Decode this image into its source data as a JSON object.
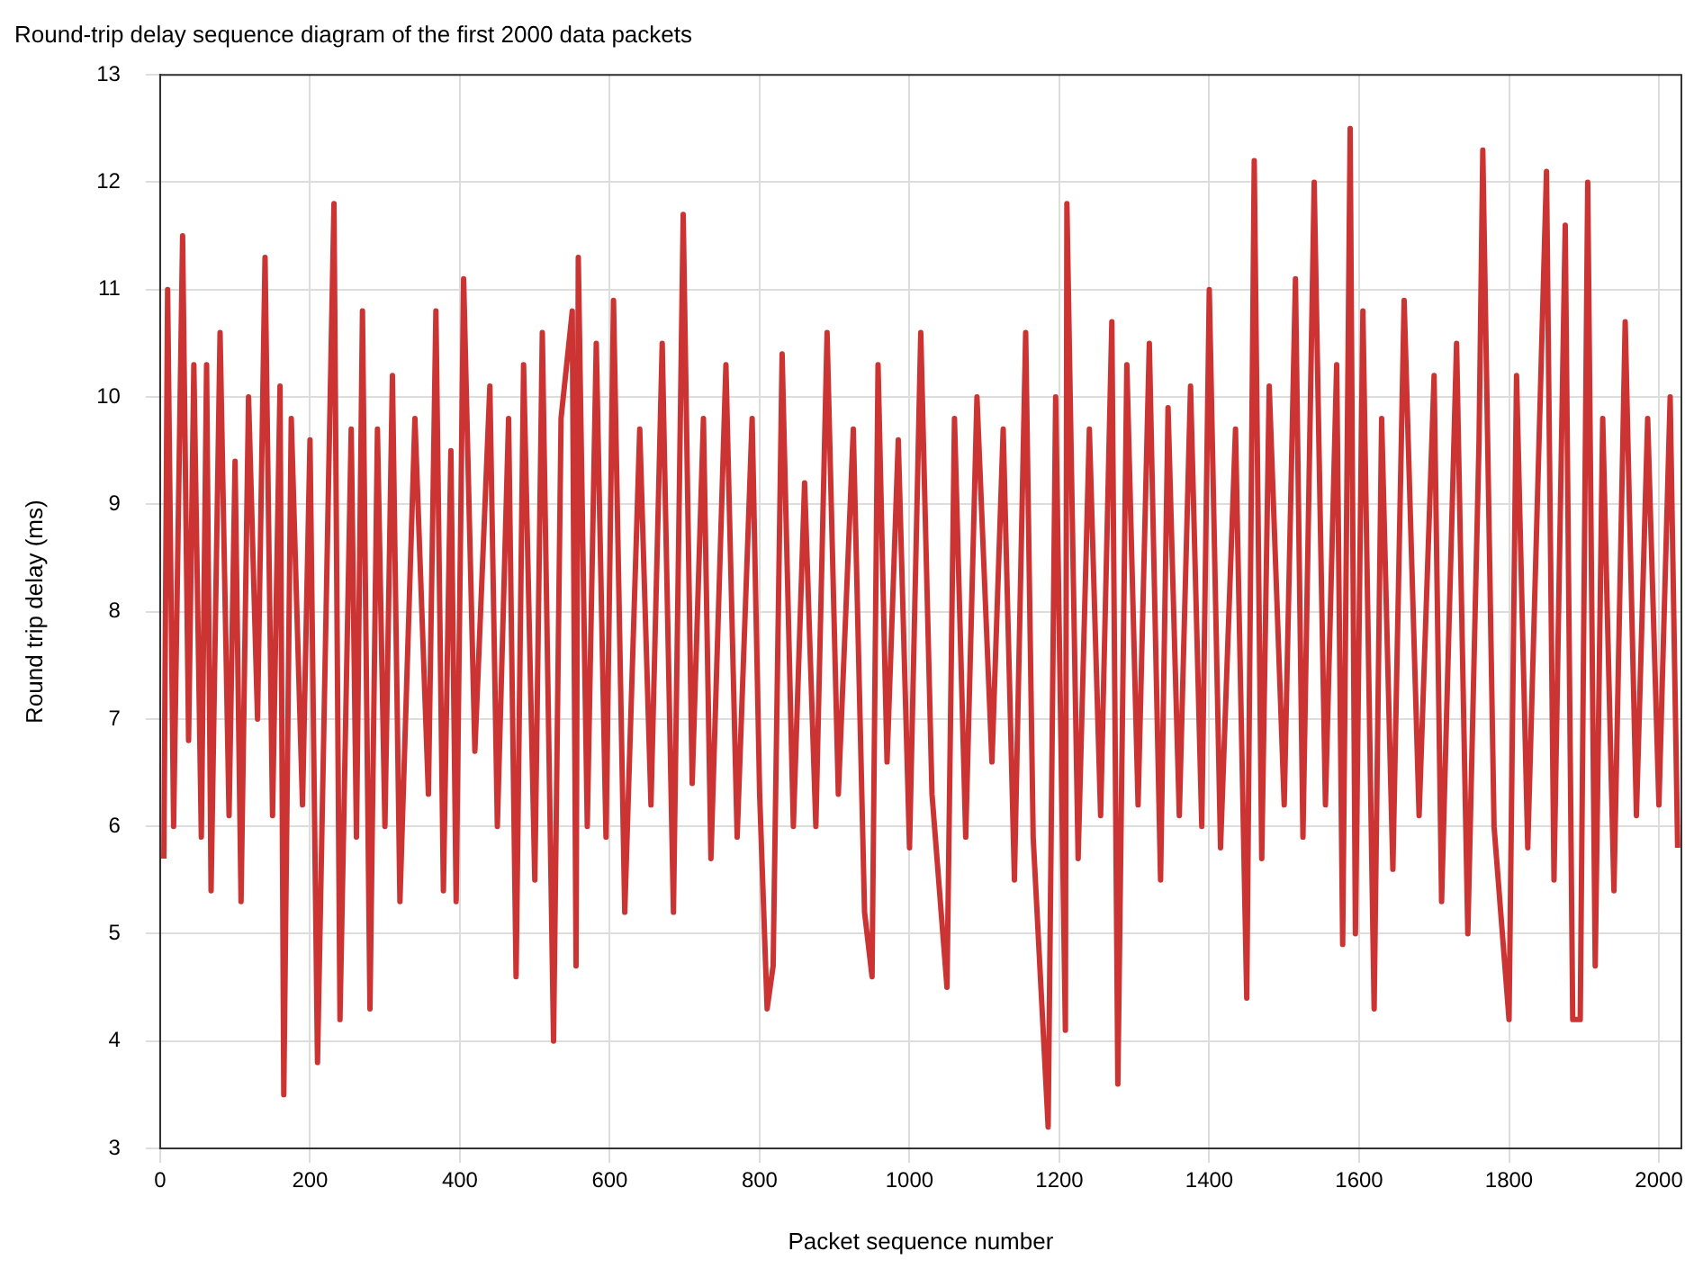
{
  "chart_data": {
    "type": "line",
    "title": "Round-trip delay sequence diagram of the first 2000 data packets",
    "xlabel": "Packet sequence number",
    "ylabel": "Round trip delay (ms)",
    "xlim": [
      0,
      2030
    ],
    "xticks": [
      0,
      200,
      400,
      600,
      800,
      1000,
      1200,
      1400,
      1600,
      1800,
      2000
    ],
    "ylim": [
      3,
      13
    ],
    "yticks": [
      3,
      4,
      5,
      6,
      7,
      8,
      9,
      10,
      11,
      12,
      13
    ],
    "grid": true,
    "legend": false,
    "marker": "none",
    "line_style": "solid",
    "series": [
      {
        "color": "#cc3333",
        "x": [
          5,
          10,
          18,
          30,
          38,
          45,
          55,
          62,
          68,
          80,
          92,
          100,
          108,
          118,
          130,
          140,
          150,
          160,
          165,
          175,
          190,
          200,
          210,
          225,
          232,
          240,
          255,
          262,
          270,
          280,
          290,
          300,
          310,
          320,
          340,
          358,
          368,
          378,
          388,
          395,
          405,
          420,
          440,
          450,
          465,
          475,
          485,
          500,
          510,
          525,
          535,
          550,
          555,
          558,
          570,
          582,
          595,
          605,
          620,
          640,
          655,
          670,
          685,
          698,
          710,
          725,
          735,
          755,
          770,
          790,
          800,
          810,
          818,
          830,
          845,
          860,
          875,
          890,
          905,
          925,
          940,
          950,
          958,
          970,
          985,
          1000,
          1015,
          1030,
          1050,
          1060,
          1075,
          1090,
          1110,
          1125,
          1140,
          1155,
          1165,
          1185,
          1195,
          1208,
          1210,
          1225,
          1240,
          1255,
          1270,
          1278,
          1290,
          1305,
          1320,
          1335,
          1345,
          1360,
          1375,
          1390,
          1400,
          1415,
          1435,
          1450,
          1460,
          1470,
          1480,
          1500,
          1515,
          1525,
          1540,
          1555,
          1570,
          1578,
          1588,
          1595,
          1605,
          1620,
          1630,
          1645,
          1660,
          1680,
          1700,
          1710,
          1730,
          1745,
          1760,
          1765,
          1780,
          1800,
          1810,
          1825,
          1850,
          1860,
          1875,
          1885,
          1895,
          1905,
          1915,
          1925,
          1940,
          1955,
          1970,
          1985,
          2000,
          2015,
          2025
        ],
        "values": [
          5.7,
          11.0,
          6.0,
          11.5,
          6.8,
          10.3,
          5.9,
          10.3,
          5.4,
          10.6,
          6.1,
          9.4,
          5.3,
          10.0,
          7.0,
          11.3,
          6.1,
          10.1,
          3.5,
          9.8,
          6.2,
          9.6,
          3.8,
          9.3,
          11.8,
          4.2,
          9.7,
          5.9,
          10.8,
          4.3,
          9.7,
          6.0,
          10.2,
          5.3,
          9.8,
          6.3,
          10.8,
          5.4,
          9.5,
          5.3,
          11.1,
          6.7,
          10.1,
          6.0,
          9.8,
          4.6,
          10.3,
          5.5,
          10.6,
          4.0,
          9.8,
          10.8,
          4.7,
          11.3,
          6.0,
          10.5,
          5.9,
          10.9,
          5.2,
          9.7,
          6.2,
          10.5,
          5.2,
          11.7,
          6.4,
          9.8,
          5.7,
          10.3,
          5.9,
          9.8,
          6.3,
          4.3,
          4.7,
          10.4,
          6.0,
          9.2,
          6.0,
          10.6,
          6.3,
          9.7,
          5.2,
          4.6,
          10.3,
          6.6,
          9.6,
          5.8,
          10.6,
          6.3,
          4.5,
          9.8,
          5.9,
          10.0,
          6.6,
          9.7,
          5.5,
          10.6,
          5.9,
          3.2,
          10.0,
          4.1,
          11.8,
          5.7,
          9.7,
          6.1,
          10.7,
          3.6,
          10.3,
          6.2,
          10.5,
          5.5,
          9.9,
          6.1,
          10.1,
          6.0,
          11.0,
          5.8,
          9.7,
          4.4,
          12.2,
          5.7,
          10.1,
          6.2,
          11.1,
          5.9,
          12.0,
          6.2,
          10.3,
          4.9,
          12.5,
          5.0,
          10.8,
          4.3,
          9.8,
          5.6,
          10.9,
          6.1,
          10.2,
          5.3,
          10.5,
          5.0,
          9.6,
          12.3,
          6.0,
          4.2,
          10.2,
          5.8,
          12.1,
          5.5,
          11.6,
          4.2,
          4.2,
          12.0,
          4.7,
          9.8,
          5.4,
          10.7,
          6.1,
          9.8,
          6.2,
          10.0,
          5.8
        ]
      }
    ]
  }
}
